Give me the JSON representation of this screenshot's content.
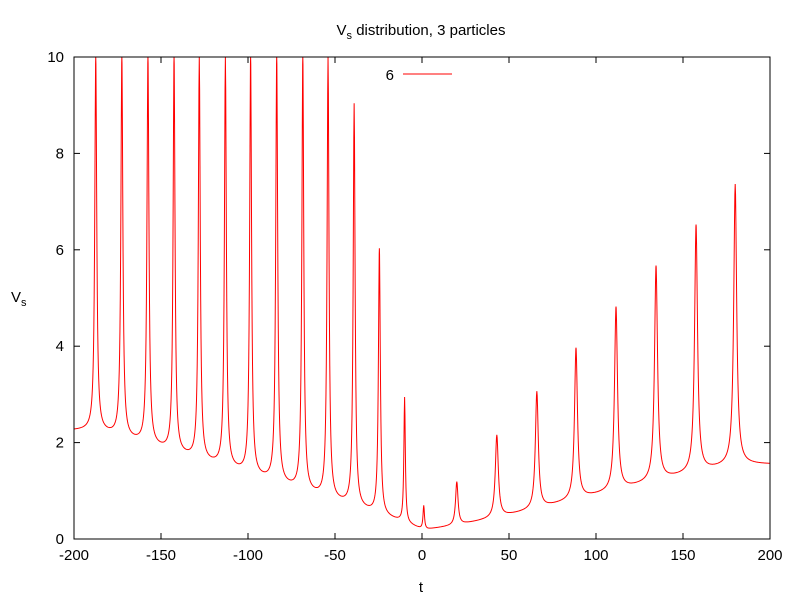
{
  "chart_data": {
    "type": "line",
    "title": "V_s distribution, 3 particles",
    "title_parts": {
      "main": "V",
      "sub": "s",
      "rest": " distribution, 3 particles"
    },
    "xlabel": "t",
    "ylabel": "V_s",
    "ylabel_parts": {
      "main": "V",
      "sub": "s"
    },
    "xlim": [
      -200,
      200
    ],
    "ylim": [
      0,
      10
    ],
    "x_ticks": [
      -200,
      -150,
      -100,
      -50,
      0,
      50,
      100,
      150,
      200
    ],
    "y_ticks": [
      0,
      2,
      4,
      6,
      8,
      10
    ],
    "x_tick_labels": [
      "-200",
      "-150",
      "-100",
      "-50",
      "0",
      "50",
      "100",
      "150",
      "200"
    ],
    "y_tick_labels": [
      "0",
      "2",
      "4",
      "6",
      "8",
      "10"
    ],
    "grid": false,
    "legend_position": "top-center",
    "series": [
      {
        "name": "6",
        "color": "#ff0000",
        "spikes": [
          {
            "t": -187.5,
            "peak": 10.0,
            "base": 2.25
          },
          {
            "t": -172.5,
            "peak": 10.0,
            "base": 2.1
          },
          {
            "t": -157.5,
            "peak": 10.0,
            "base": 1.95
          },
          {
            "t": -142.5,
            "peak": 10.0,
            "base": 1.78
          },
          {
            "t": -128.0,
            "peak": 10.0,
            "base": 1.62
          },
          {
            "t": -113.0,
            "peak": 10.0,
            "base": 1.48
          },
          {
            "t": -98.5,
            "peak": 10.0,
            "base": 1.32
          },
          {
            "t": -83.5,
            "peak": 10.0,
            "base": 1.15
          },
          {
            "t": -68.5,
            "peak": 10.0,
            "base": 0.98
          },
          {
            "t": -54.0,
            "peak": 10.0,
            "base": 0.82
          },
          {
            "t": -39.0,
            "peak": 9.0,
            "base": 0.66
          },
          {
            "t": -24.5,
            "peak": 6.0,
            "base": 0.5
          },
          {
            "t": -10.0,
            "peak": 2.92,
            "base": 0.33
          },
          {
            "t": 1.0,
            "peak": 0.68,
            "base": 0.18
          },
          {
            "t": 20.0,
            "peak": 1.18,
            "base": 0.28
          },
          {
            "t": 43.0,
            "peak": 2.15,
            "base": 0.44
          },
          {
            "t": 66.0,
            "peak": 3.05,
            "base": 0.62
          },
          {
            "t": 88.5,
            "peak": 3.95,
            "base": 0.82
          },
          {
            "t": 111.5,
            "peak": 4.8,
            "base": 1.0
          },
          {
            "t": 134.5,
            "peak": 5.65,
            "base": 1.2
          },
          {
            "t": 157.5,
            "peak": 6.5,
            "base": 1.38
          },
          {
            "t": 180.0,
            "peak": 7.35,
            "base": 1.55
          }
        ]
      }
    ]
  }
}
